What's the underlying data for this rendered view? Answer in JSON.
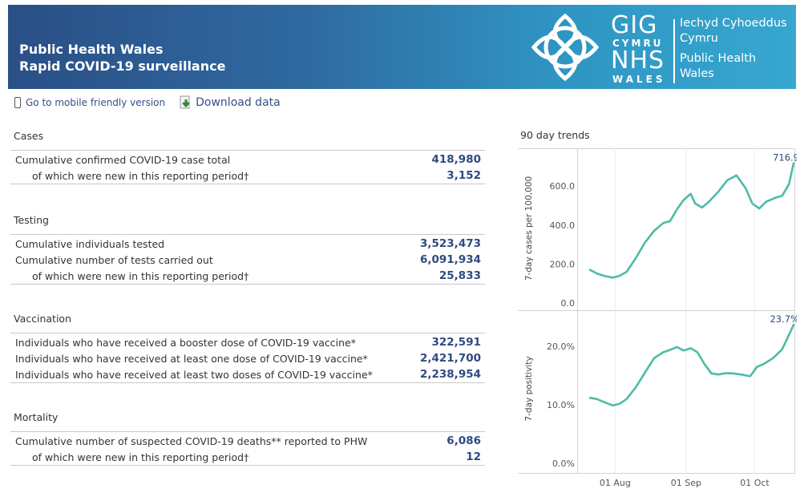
{
  "header": {
    "title_line1": "Public Health Wales",
    "title_line2": "Rapid COVID-19 surveillance",
    "logo": {
      "gig": "GIG",
      "cymru": "CYMRU",
      "nhs": "NHS",
      "wales": "WALES",
      "welsh_name_1": "Iechyd Cyhoeddus",
      "welsh_name_2": "Cymru",
      "english_name_1": "Public Health",
      "english_name_2": "Wales"
    }
  },
  "links": {
    "mobile": "Go to mobile friendly version",
    "download": "Download data"
  },
  "sections": {
    "cases": {
      "title": "Cases",
      "rows": [
        {
          "label": "Cumulative confirmed COVID-19 case total",
          "value": "418,980"
        },
        {
          "label": "of which were new in this reporting period†",
          "value": "3,152"
        }
      ]
    },
    "testing": {
      "title": "Testing",
      "rows": [
        {
          "label": "Cumulative individuals tested",
          "value": "3,523,473"
        },
        {
          "label": "Cumulative number of tests carried out",
          "value": "6,091,934"
        },
        {
          "label": "of which were new in this reporting period†",
          "value": "25,833"
        }
      ]
    },
    "vaccination": {
      "title": "Vaccination",
      "rows": [
        {
          "label": "Individuals who have received a booster dose of COVID-19 vaccine*",
          "value": "322,591"
        },
        {
          "label": "Individuals who have received at least one dose of COVID-19 vaccine*",
          "value": "2,421,700"
        },
        {
          "label": "Individuals who have received at least two doses of COVID-19 vaccine*",
          "value": "2,238,954"
        }
      ]
    },
    "mortality": {
      "title": "Mortality",
      "rows": [
        {
          "label": "Cumulative number of suspected COVID-19 deaths** reported to PHW",
          "value": "6,086"
        },
        {
          "label": "of which were new in this reporting period†",
          "value": "12"
        }
      ]
    }
  },
  "trends_title": "90 day trends",
  "colors": {
    "header_left": "#2a4f86",
    "header_right": "#37a7cf",
    "value_text": "#2e4a80",
    "line": "#4dbba6"
  },
  "chart_data": [
    {
      "type": "line",
      "title": "",
      "ylabel": "7-day cases per 100,000",
      "xlabel": "",
      "ylim": [
        0,
        720
      ],
      "yticks": [
        {
          "value": 0,
          "label": "0.0"
        },
        {
          "value": 200,
          "label": "200.0"
        },
        {
          "value": 400,
          "label": "400.0"
        },
        {
          "value": 600,
          "label": "600.0"
        }
      ],
      "last_value_label": "716.9",
      "x": [
        "2021-07-21",
        "2021-07-24",
        "2021-07-27",
        "2021-07-31",
        "2021-08-03",
        "2021-08-06",
        "2021-08-10",
        "2021-08-14",
        "2021-08-18",
        "2021-08-22",
        "2021-08-25",
        "2021-08-28",
        "2021-08-31",
        "2021-09-03",
        "2021-09-05",
        "2021-09-08",
        "2021-09-11",
        "2021-09-15",
        "2021-09-19",
        "2021-09-23",
        "2021-09-27",
        "2021-09-30",
        "2021-10-03",
        "2021-10-06",
        "2021-10-10",
        "2021-10-13",
        "2021-10-16",
        "2021-10-18"
      ],
      "values": [
        170,
        152,
        140,
        130,
        140,
        160,
        230,
        310,
        370,
        410,
        420,
        480,
        530,
        560,
        510,
        490,
        520,
        570,
        630,
        655,
        590,
        510,
        485,
        520,
        540,
        550,
        610,
        717
      ]
    },
    {
      "type": "line",
      "title": "",
      "ylabel": "7-day positivity",
      "xlabel": "",
      "ylim": [
        0,
        24
      ],
      "yticks": [
        {
          "value": 0,
          "label": "0.0%"
        },
        {
          "value": 10,
          "label": "10.0%"
        },
        {
          "value": 20,
          "label": "20.0%"
        }
      ],
      "xticks": [
        "01 Aug",
        "01 Sep",
        "01 Oct"
      ],
      "last_value_label": "23.7%",
      "x": [
        "2021-07-21",
        "2021-07-24",
        "2021-07-27",
        "2021-07-31",
        "2021-08-03",
        "2021-08-06",
        "2021-08-10",
        "2021-08-14",
        "2021-08-18",
        "2021-08-22",
        "2021-08-25",
        "2021-08-28",
        "2021-08-31",
        "2021-09-03",
        "2021-09-06",
        "2021-09-09",
        "2021-09-12",
        "2021-09-15",
        "2021-09-18",
        "2021-09-21",
        "2021-09-25",
        "2021-09-29",
        "2021-10-02",
        "2021-10-05",
        "2021-10-09",
        "2021-10-13",
        "2021-10-16",
        "2021-10-18"
      ],
      "values": [
        11.2,
        11.0,
        10.5,
        9.9,
        10.2,
        11.0,
        13.0,
        15.5,
        18.0,
        19.0,
        19.4,
        19.9,
        19.3,
        19.7,
        19.0,
        17.0,
        15.4,
        15.2,
        15.4,
        15.4,
        15.2,
        14.9,
        16.5,
        17.0,
        18.0,
        19.5,
        22.0,
        23.7
      ]
    }
  ]
}
